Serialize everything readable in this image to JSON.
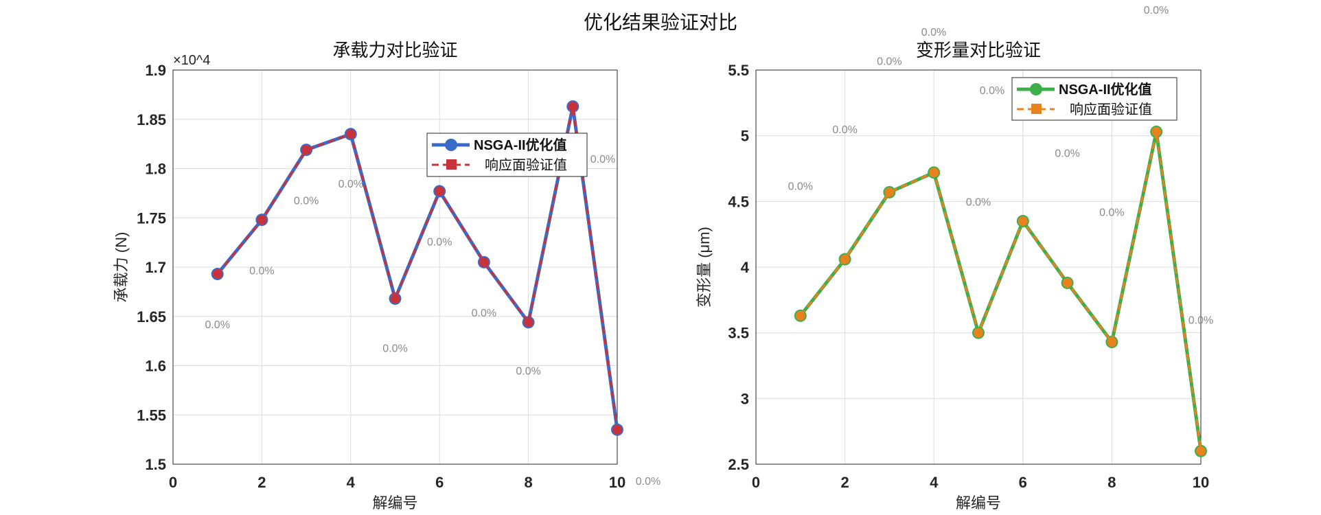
{
  "figure_title": "优化结果验证对比",
  "chart_data": [
    {
      "type": "line",
      "title": "承载力对比验证",
      "xlabel": "解编号",
      "ylabel": "承载力 (N)",
      "y_exponent_label": "×10^4",
      "y_exponent": "4",
      "xlim": [
        0,
        10
      ],
      "ylim": [
        1.5,
        1.9
      ],
      "xticks": [
        0,
        2,
        4,
        6,
        8,
        10
      ],
      "yticks": [
        1.5,
        1.55,
        1.6,
        1.65,
        1.7,
        1.75,
        1.8,
        1.85,
        1.9
      ],
      "ytick_labels": [
        "1.5",
        "1.55",
        "1.6",
        "1.65",
        "1.7",
        "1.75",
        "1.8",
        "1.85",
        "1.9"
      ],
      "grid": true,
      "legend_position": "upper-right",
      "x": [
        1,
        2,
        3,
        4,
        5,
        6,
        7,
        8,
        9,
        10
      ],
      "series": [
        {
          "name": "NSGA-II优化值",
          "values": [
            1.693,
            1.748,
            1.819,
            1.835,
            1.668,
            1.777,
            1.705,
            1.644,
            1.863,
            1.535
          ],
          "color": "#3a6bc9",
          "marker": "circle",
          "style": "solid"
        },
        {
          "name": "响应面验证值",
          "values": [
            1.693,
            1.748,
            1.819,
            1.835,
            1.668,
            1.777,
            1.705,
            1.644,
            1.863,
            1.535
          ],
          "color": "#c8323a",
          "marker": "square",
          "style": "dashed"
        }
      ],
      "annotations": [
        {
          "x": 1,
          "y": 1.642,
          "text": "0.0%"
        },
        {
          "x": 2,
          "y": 1.697,
          "text": "0.0%"
        },
        {
          "x": 3,
          "y": 1.768,
          "text": "0.0%"
        },
        {
          "x": 4,
          "y": 1.785,
          "text": "0.0%"
        },
        {
          "x": 5,
          "y": 1.618,
          "text": "0.0%"
        },
        {
          "x": 6,
          "y": 1.726,
          "text": "0.0%"
        },
        {
          "x": 7,
          "y": 1.654,
          "text": "0.0%"
        },
        {
          "x": 8,
          "y": 1.595,
          "text": "0.0%"
        },
        {
          "x": 9,
          "y": 1.81,
          "text": "0.0%"
        },
        {
          "x": 10,
          "y": 1.484,
          "text": "0.0%"
        }
      ]
    },
    {
      "type": "line",
      "title": "变形量对比验证",
      "xlabel": "解编号",
      "ylabel": "变形量 (μm)",
      "xlim": [
        0,
        10
      ],
      "ylim": [
        2.5,
        5.5
      ],
      "xticks": [
        0,
        2,
        4,
        6,
        8,
        10
      ],
      "yticks": [
        2.5,
        3,
        3.5,
        4,
        4.5,
        5,
        5.5
      ],
      "ytick_labels": [
        "2.5",
        "3",
        "3.5",
        "4",
        "4.5",
        "5",
        "5.5"
      ],
      "grid": true,
      "legend_position": "upper-right",
      "x": [
        1,
        2,
        3,
        4,
        5,
        6,
        7,
        8,
        9,
        10
      ],
      "series": [
        {
          "name": "NSGA-II优化值",
          "values": [
            3.63,
            4.06,
            4.57,
            4.72,
            3.5,
            4.35,
            3.88,
            3.43,
            5.03,
            2.6
          ],
          "color": "#3cae4a",
          "marker": "circle",
          "style": "solid"
        },
        {
          "name": "响应面验证值",
          "values": [
            3.63,
            4.06,
            4.57,
            4.72,
            3.5,
            4.35,
            3.88,
            3.43,
            5.03,
            2.6
          ],
          "color": "#e8821e",
          "marker": "square",
          "style": "dashed"
        }
      ],
      "annotations": [
        {
          "x": 1,
          "y": 4.62,
          "text": "0.0%"
        },
        {
          "x": 2,
          "y": 5.05,
          "text": "0.0%"
        },
        {
          "x": 3,
          "y": 5.57,
          "text": "0.0%"
        },
        {
          "x": 4,
          "y": 5.71,
          "text": "0.0%"
        },
        {
          "x": 5,
          "y": 4.5,
          "text": "0.0%"
        },
        {
          "x": 6,
          "y": 5.35,
          "text": "0.0%"
        },
        {
          "x": 7,
          "y": 4.87,
          "text": "0.0%"
        },
        {
          "x": 8,
          "y": 4.42,
          "text": "0.0%"
        },
        {
          "x": 9,
          "y": 6.02,
          "text": "0.0%"
        },
        {
          "x": 10,
          "y": 3.6,
          "text": "0.0%"
        }
      ]
    }
  ]
}
